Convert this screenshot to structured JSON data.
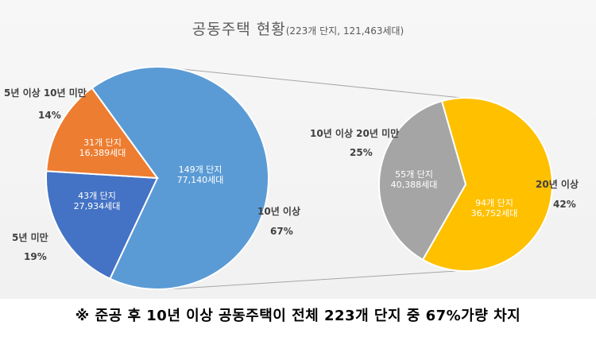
{
  "title": {
    "main": "공동주택 현황",
    "sub": "(223개 단지, 121,463세대)"
  },
  "chart_data": [
    {
      "type": "pie",
      "name": "main",
      "slices": [
        {
          "label": "10년 이상",
          "percent": "67%",
          "value": 67,
          "complexes": "149개 단지",
          "households": "77,140세대",
          "color": "#5B9BD5"
        },
        {
          "label": "5년 미만",
          "percent": "19%",
          "value": 19,
          "complexes": "43개 단지",
          "households": "27,934세대",
          "color": "#4472C4"
        },
        {
          "label": "5년 이상 10년 미만",
          "percent": "14%",
          "value": 14,
          "complexes": "31개 단지",
          "households": "16,389세대",
          "color": "#ED7D31"
        }
      ]
    },
    {
      "type": "pie",
      "name": "breakdown",
      "slices": [
        {
          "label": "20년 이상",
          "percent": "42%",
          "value": 42,
          "complexes": "94개 단지",
          "households": "36,752세대",
          "color": "#FFC000"
        },
        {
          "label": "10년 이상 20년 미만",
          "percent": "25%",
          "value": 25,
          "complexes": "55개 단지",
          "households": "40,388세대",
          "color": "#A5A5A5"
        }
      ]
    }
  ],
  "footnote": "※ 준공 후 10년 이상 공동주택이 전체 223개 단지 중 67%가량 차지"
}
